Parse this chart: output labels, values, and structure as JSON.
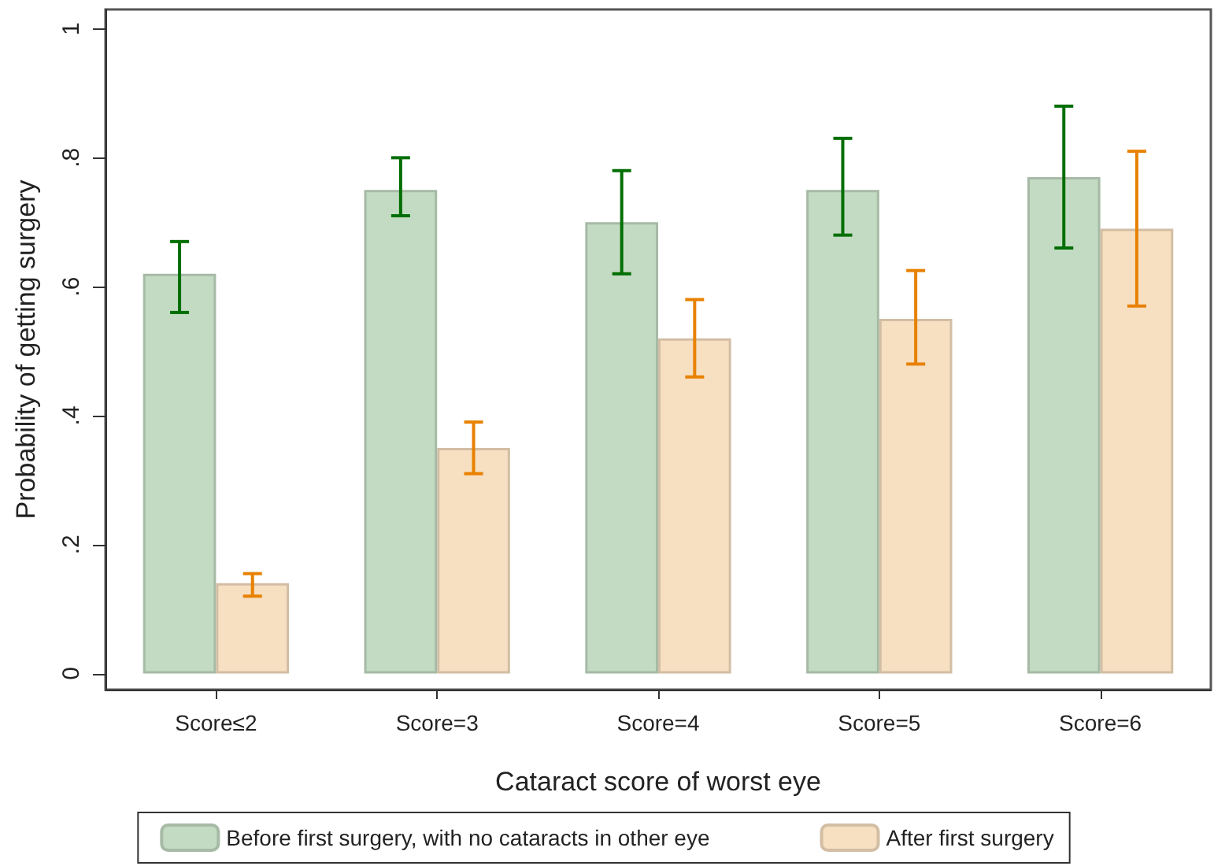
{
  "chart_data": {
    "type": "bar",
    "xlabel": "Cataract score of worst eye",
    "ylabel": "Probability of getting surgery",
    "categories": [
      "Score≤2",
      "Score=3",
      "Score=4",
      "Score=5",
      "Score=6"
    ],
    "series": [
      {
        "name": "Before first surgery, with no cataracts in other eye",
        "color": "#c3dbc3",
        "values": [
          0.62,
          0.75,
          0.7,
          0.75,
          0.77
        ],
        "errors": [
          [
            0.56,
            0.67
          ],
          [
            0.71,
            0.8
          ],
          [
            0.62,
            0.78
          ],
          [
            0.68,
            0.83
          ],
          [
            0.66,
            0.88
          ]
        ]
      },
      {
        "name": "After first surgery",
        "color": "#f7dfc1",
        "values": [
          0.14,
          0.35,
          0.52,
          0.55,
          0.69
        ],
        "errors": [
          [
            0.12,
            0.155
          ],
          [
            0.31,
            0.39
          ],
          [
            0.46,
            0.58
          ],
          [
            0.48,
            0.625
          ],
          [
            0.57,
            0.81
          ]
        ]
      }
    ],
    "ylim": [
      -0.025,
      1.03
    ],
    "yticks": [
      {
        "value": 0,
        "label": "0"
      },
      {
        "value": 0.2,
        "label": ".2"
      },
      {
        "value": 0.4,
        "label": ".4"
      },
      {
        "value": 0.6,
        "label": ".6"
      },
      {
        "value": 0.8,
        "label": ".8"
      },
      {
        "value": 1,
        "label": "1"
      }
    ],
    "legend": "bottom"
  }
}
